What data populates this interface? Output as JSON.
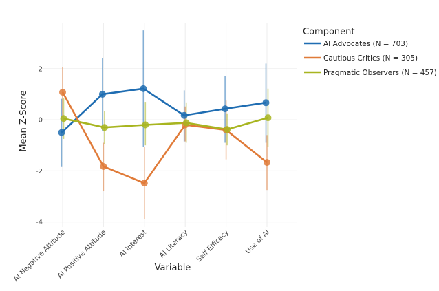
{
  "chart_data": {
    "type": "line",
    "title": "",
    "xlabel": "Variable",
    "ylabel": "Mean Z-Score",
    "categories": [
      "AI Negative Attitude",
      "AI Positive Attitude",
      "AI Interest",
      "AI Literacy",
      "Self Efficacy",
      "Use of AI"
    ],
    "ylim": [
      -4.2,
      3.8
    ],
    "yticks": [
      -4,
      -2,
      0,
      2
    ],
    "grid": true,
    "legend": {
      "title": "Component",
      "placement": "right"
    },
    "series": [
      {
        "name": "AI Advocates (N = 703)",
        "color": "#1f6db2",
        "values": [
          -0.5,
          1.0,
          1.22,
          0.17,
          0.43,
          0.67
        ],
        "error_low": [
          -1.85,
          -0.45,
          -1.05,
          -0.85,
          -0.9,
          -0.9
        ],
        "error_high": [
          0.82,
          2.42,
          3.5,
          1.15,
          1.72,
          2.2
        ]
      },
      {
        "name": "Cautious Critics (N = 305)",
        "color": "#e07b39",
        "values": [
          1.08,
          -1.83,
          -2.48,
          -0.2,
          -0.4,
          -1.67
        ],
        "error_low": [
          0.1,
          -2.8,
          -3.9,
          -0.85,
          -1.55,
          -2.75
        ],
        "error_high": [
          2.07,
          -0.9,
          -1.05,
          0.52,
          0.75,
          -0.6
        ]
      },
      {
        "name": "Pragmatic Observers (N = 457)",
        "color": "#a8b520",
        "values": [
          0.05,
          -0.3,
          -0.2,
          -0.12,
          -0.38,
          0.08
        ],
        "error_low": [
          -0.75,
          -0.95,
          -1.0,
          -0.9,
          -1.0,
          -1.05
        ],
        "error_high": [
          0.85,
          0.35,
          0.7,
          0.68,
          0.25,
          1.22
        ]
      }
    ]
  }
}
